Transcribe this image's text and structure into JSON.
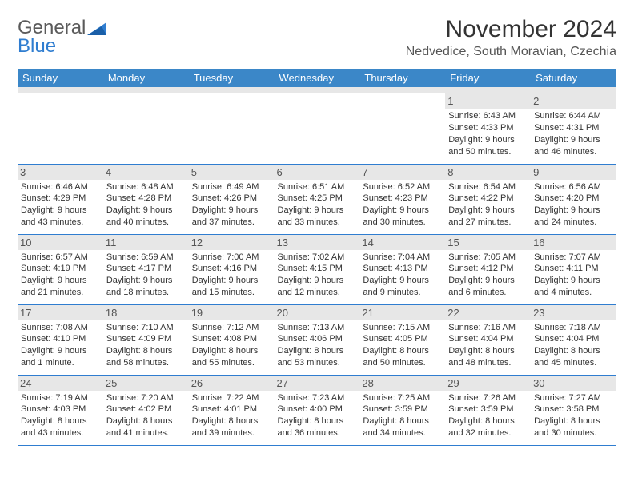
{
  "logo": {
    "line1": "General",
    "line2": "Blue"
  },
  "title": "November 2024",
  "location": "Nedvedice, South Moravian, Czechia",
  "colors": {
    "header_bg": "#3b87c8",
    "header_fg": "#ffffff",
    "band_bg": "#e7e7e7",
    "border": "#2f7dd0",
    "logo_grey": "#5a5a5a",
    "logo_blue": "#2f7dd0"
  },
  "day_headers": [
    "Sunday",
    "Monday",
    "Tuesday",
    "Wednesday",
    "Thursday",
    "Friday",
    "Saturday"
  ],
  "weeks": [
    [
      null,
      null,
      null,
      null,
      null,
      {
        "n": "1",
        "sr": "Sunrise: 6:43 AM",
        "ss": "Sunset: 4:33 PM",
        "dl": "Daylight: 9 hours and 50 minutes."
      },
      {
        "n": "2",
        "sr": "Sunrise: 6:44 AM",
        "ss": "Sunset: 4:31 PM",
        "dl": "Daylight: 9 hours and 46 minutes."
      }
    ],
    [
      {
        "n": "3",
        "sr": "Sunrise: 6:46 AM",
        "ss": "Sunset: 4:29 PM",
        "dl": "Daylight: 9 hours and 43 minutes."
      },
      {
        "n": "4",
        "sr": "Sunrise: 6:48 AM",
        "ss": "Sunset: 4:28 PM",
        "dl": "Daylight: 9 hours and 40 minutes."
      },
      {
        "n": "5",
        "sr": "Sunrise: 6:49 AM",
        "ss": "Sunset: 4:26 PM",
        "dl": "Daylight: 9 hours and 37 minutes."
      },
      {
        "n": "6",
        "sr": "Sunrise: 6:51 AM",
        "ss": "Sunset: 4:25 PM",
        "dl": "Daylight: 9 hours and 33 minutes."
      },
      {
        "n": "7",
        "sr": "Sunrise: 6:52 AM",
        "ss": "Sunset: 4:23 PM",
        "dl": "Daylight: 9 hours and 30 minutes."
      },
      {
        "n": "8",
        "sr": "Sunrise: 6:54 AM",
        "ss": "Sunset: 4:22 PM",
        "dl": "Daylight: 9 hours and 27 minutes."
      },
      {
        "n": "9",
        "sr": "Sunrise: 6:56 AM",
        "ss": "Sunset: 4:20 PM",
        "dl": "Daylight: 9 hours and 24 minutes."
      }
    ],
    [
      {
        "n": "10",
        "sr": "Sunrise: 6:57 AM",
        "ss": "Sunset: 4:19 PM",
        "dl": "Daylight: 9 hours and 21 minutes."
      },
      {
        "n": "11",
        "sr": "Sunrise: 6:59 AM",
        "ss": "Sunset: 4:17 PM",
        "dl": "Daylight: 9 hours and 18 minutes."
      },
      {
        "n": "12",
        "sr": "Sunrise: 7:00 AM",
        "ss": "Sunset: 4:16 PM",
        "dl": "Daylight: 9 hours and 15 minutes."
      },
      {
        "n": "13",
        "sr": "Sunrise: 7:02 AM",
        "ss": "Sunset: 4:15 PM",
        "dl": "Daylight: 9 hours and 12 minutes."
      },
      {
        "n": "14",
        "sr": "Sunrise: 7:04 AM",
        "ss": "Sunset: 4:13 PM",
        "dl": "Daylight: 9 hours and 9 minutes."
      },
      {
        "n": "15",
        "sr": "Sunrise: 7:05 AM",
        "ss": "Sunset: 4:12 PM",
        "dl": "Daylight: 9 hours and 6 minutes."
      },
      {
        "n": "16",
        "sr": "Sunrise: 7:07 AM",
        "ss": "Sunset: 4:11 PM",
        "dl": "Daylight: 9 hours and 4 minutes."
      }
    ],
    [
      {
        "n": "17",
        "sr": "Sunrise: 7:08 AM",
        "ss": "Sunset: 4:10 PM",
        "dl": "Daylight: 9 hours and 1 minute."
      },
      {
        "n": "18",
        "sr": "Sunrise: 7:10 AM",
        "ss": "Sunset: 4:09 PM",
        "dl": "Daylight: 8 hours and 58 minutes."
      },
      {
        "n": "19",
        "sr": "Sunrise: 7:12 AM",
        "ss": "Sunset: 4:08 PM",
        "dl": "Daylight: 8 hours and 55 minutes."
      },
      {
        "n": "20",
        "sr": "Sunrise: 7:13 AM",
        "ss": "Sunset: 4:06 PM",
        "dl": "Daylight: 8 hours and 53 minutes."
      },
      {
        "n": "21",
        "sr": "Sunrise: 7:15 AM",
        "ss": "Sunset: 4:05 PM",
        "dl": "Daylight: 8 hours and 50 minutes."
      },
      {
        "n": "22",
        "sr": "Sunrise: 7:16 AM",
        "ss": "Sunset: 4:04 PM",
        "dl": "Daylight: 8 hours and 48 minutes."
      },
      {
        "n": "23",
        "sr": "Sunrise: 7:18 AM",
        "ss": "Sunset: 4:04 PM",
        "dl": "Daylight: 8 hours and 45 minutes."
      }
    ],
    [
      {
        "n": "24",
        "sr": "Sunrise: 7:19 AM",
        "ss": "Sunset: 4:03 PM",
        "dl": "Daylight: 8 hours and 43 minutes."
      },
      {
        "n": "25",
        "sr": "Sunrise: 7:20 AM",
        "ss": "Sunset: 4:02 PM",
        "dl": "Daylight: 8 hours and 41 minutes."
      },
      {
        "n": "26",
        "sr": "Sunrise: 7:22 AM",
        "ss": "Sunset: 4:01 PM",
        "dl": "Daylight: 8 hours and 39 minutes."
      },
      {
        "n": "27",
        "sr": "Sunrise: 7:23 AM",
        "ss": "Sunset: 4:00 PM",
        "dl": "Daylight: 8 hours and 36 minutes."
      },
      {
        "n": "28",
        "sr": "Sunrise: 7:25 AM",
        "ss": "Sunset: 3:59 PM",
        "dl": "Daylight: 8 hours and 34 minutes."
      },
      {
        "n": "29",
        "sr": "Sunrise: 7:26 AM",
        "ss": "Sunset: 3:59 PM",
        "dl": "Daylight: 8 hours and 32 minutes."
      },
      {
        "n": "30",
        "sr": "Sunrise: 7:27 AM",
        "ss": "Sunset: 3:58 PM",
        "dl": "Daylight: 8 hours and 30 minutes."
      }
    ]
  ]
}
